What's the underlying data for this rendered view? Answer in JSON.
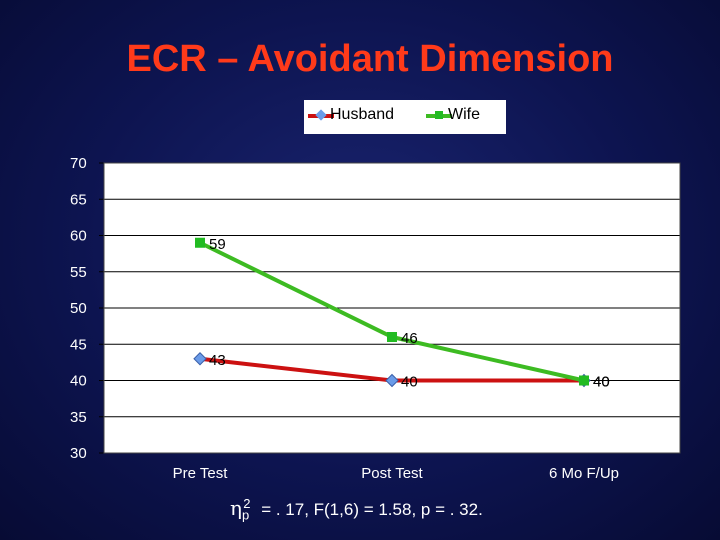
{
  "slide": {
    "title": "ECR – Avoidant Dimension",
    "footnote": "= . 17, F(1,6) = 1.58, p = . 32.",
    "footnote_symbol": "η",
    "footnote_sub": "p",
    "footnote_sup": "2"
  },
  "chart_data": {
    "type": "line",
    "title": "ECR – Avoidant Dimension",
    "xlabel": "",
    "ylabel": "",
    "categories": [
      "Pre Test",
      "Post Test",
      "6 Mo F/Up"
    ],
    "ylim": [
      30,
      70
    ],
    "yticks": [
      70,
      65,
      60,
      55,
      50,
      45,
      40,
      35,
      30
    ],
    "grid": true,
    "legend_position": "top",
    "series": [
      {
        "name": "Husband",
        "values": [
          43,
          40,
          40
        ],
        "labels": [
          "43",
          "40",
          "40"
        ],
        "color": "#cc1111",
        "marker": "diamond",
        "marker_color": "#6a9be8"
      },
      {
        "name": "Wife",
        "values": [
          59,
          46,
          40
        ],
        "labels": [
          "59",
          "46",
          "40"
        ],
        "color": "#3dbb22",
        "marker": "square",
        "marker_color": "#22bb22"
      }
    ]
  }
}
